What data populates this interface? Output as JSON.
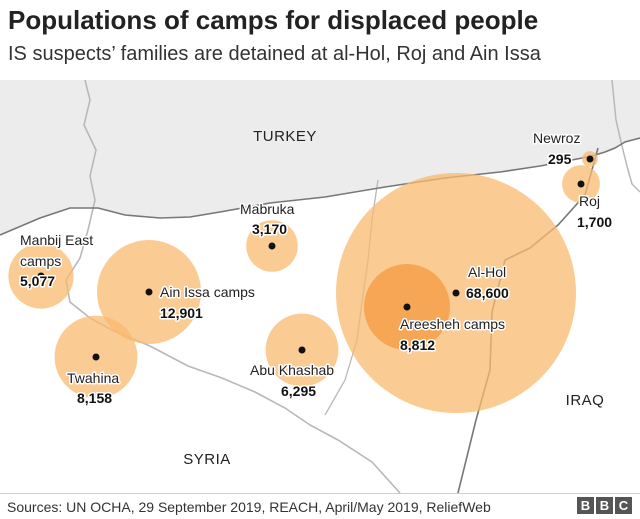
{
  "title": "Populations of camps for displaced people",
  "subtitle": "IS suspects’ families are detained at al-Hol, Roj and Ain Issa",
  "countries": [
    {
      "key": "turkey",
      "label": "TURKEY"
    },
    {
      "key": "syria",
      "label": "SYRIA"
    },
    {
      "key": "iraq",
      "label": "IRAQ"
    }
  ],
  "camps": [
    {
      "key": "manbij-east",
      "name_lines": [
        "Manbij East",
        "camps"
      ],
      "population": 5077,
      "population_label": "5,077"
    },
    {
      "key": "ain-issa",
      "name_lines": [
        "Ain Issa camps"
      ],
      "population": 12901,
      "population_label": "12,901"
    },
    {
      "key": "twahina",
      "name_lines": [
        "Twahina"
      ],
      "population": 8158,
      "population_label": "8,158"
    },
    {
      "key": "mabruka",
      "name_lines": [
        "Mabruka"
      ],
      "population": 3170,
      "population_label": "3,170"
    },
    {
      "key": "abu-khashab",
      "name_lines": [
        "Abu Khashab"
      ],
      "population": 6295,
      "population_label": "6,295"
    },
    {
      "key": "al-hol",
      "name_lines": [
        "Al-Hol"
      ],
      "population": 68600,
      "population_label": "68,600"
    },
    {
      "key": "areesheh",
      "name_lines": [
        "Areesheh camps"
      ],
      "population": 8812,
      "population_label": "8,812"
    },
    {
      "key": "newroz",
      "name_lines": [
        "Newroz"
      ],
      "population": 295,
      "population_label": "295"
    },
    {
      "key": "roj",
      "name_lines": [
        "Roj"
      ],
      "population": 1700,
      "population_label": "1,700"
    }
  ],
  "colors": {
    "bubble": "#f9b970",
    "bubble_overlap": "#f4a04a",
    "land_north": "#ececec",
    "land_south": "#ffffff",
    "border": "#777777",
    "river": "#b8b8b8"
  },
  "footer": {
    "source": "Sources: UN OCHA, 29 September 2019, REACH, April/May 2019, ReliefWeb",
    "logo_letters": [
      "B",
      "B",
      "C"
    ]
  }
}
